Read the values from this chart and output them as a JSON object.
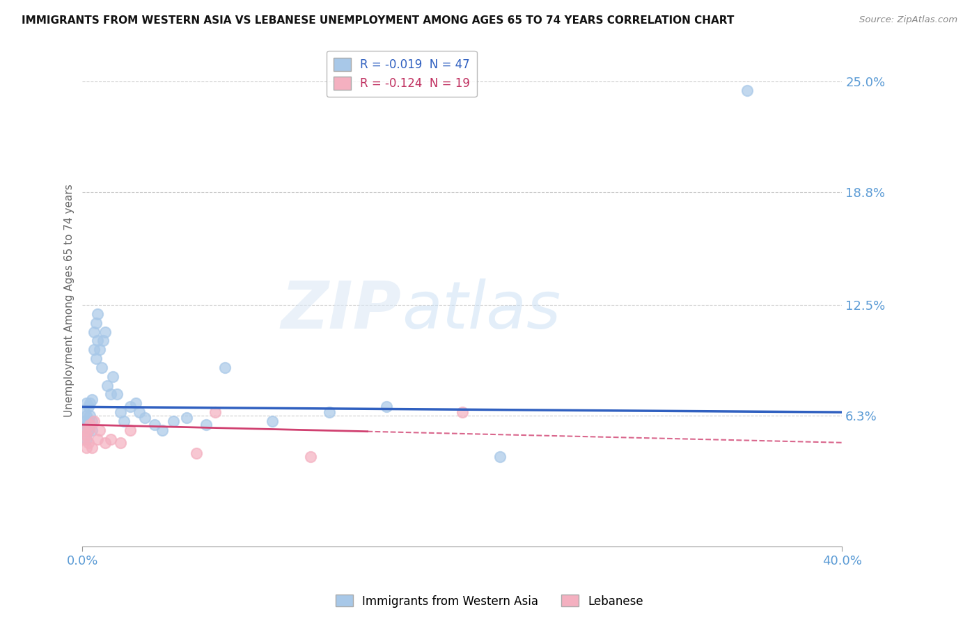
{
  "title": "IMMIGRANTS FROM WESTERN ASIA VS LEBANESE UNEMPLOYMENT AMONG AGES 65 TO 74 YEARS CORRELATION CHART",
  "source": "Source: ZipAtlas.com",
  "ylabel": "Unemployment Among Ages 65 to 74 years",
  "xlim": [
    0.0,
    0.4
  ],
  "ylim": [
    -0.01,
    0.265
  ],
  "yticks": [
    0.063,
    0.125,
    0.188,
    0.25
  ],
  "ytick_labels": [
    "6.3%",
    "12.5%",
    "18.8%",
    "25.0%"
  ],
  "xticks": [
    0.0,
    0.4
  ],
  "xtick_labels": [
    "0.0%",
    "40.0%"
  ],
  "blue_color": "#a8c8e8",
  "pink_color": "#f4b0c0",
  "blue_line_color": "#3060c0",
  "pink_line_color": "#d04070",
  "blue_label": "Immigrants from Western Asia",
  "pink_label": "Lebanese",
  "blue_R": -0.019,
  "blue_N": 47,
  "pink_R": -0.124,
  "pink_N": 19,
  "watermark_zip": "ZIP",
  "watermark_atlas": "atlas",
  "blue_scatter_x": [
    0.001,
    0.001,
    0.001,
    0.002,
    0.002,
    0.002,
    0.002,
    0.003,
    0.003,
    0.003,
    0.004,
    0.004,
    0.004,
    0.005,
    0.005,
    0.005,
    0.006,
    0.006,
    0.007,
    0.007,
    0.008,
    0.008,
    0.009,
    0.01,
    0.011,
    0.012,
    0.013,
    0.015,
    0.016,
    0.018,
    0.02,
    0.022,
    0.025,
    0.028,
    0.03,
    0.033,
    0.038,
    0.042,
    0.048,
    0.055,
    0.065,
    0.075,
    0.1,
    0.13,
    0.16,
    0.22,
    0.35
  ],
  "blue_scatter_y": [
    0.055,
    0.06,
    0.065,
    0.05,
    0.058,
    0.063,
    0.07,
    0.055,
    0.06,
    0.068,
    0.058,
    0.063,
    0.07,
    0.055,
    0.06,
    0.072,
    0.1,
    0.11,
    0.095,
    0.115,
    0.105,
    0.12,
    0.1,
    0.09,
    0.105,
    0.11,
    0.08,
    0.075,
    0.085,
    0.075,
    0.065,
    0.06,
    0.068,
    0.07,
    0.065,
    0.062,
    0.058,
    0.055,
    0.06,
    0.062,
    0.058,
    0.09,
    0.06,
    0.065,
    0.068,
    0.04,
    0.245
  ],
  "pink_scatter_x": [
    0.001,
    0.001,
    0.002,
    0.002,
    0.003,
    0.003,
    0.004,
    0.005,
    0.006,
    0.008,
    0.009,
    0.012,
    0.015,
    0.02,
    0.025,
    0.06,
    0.07,
    0.12,
    0.2
  ],
  "pink_scatter_y": [
    0.05,
    0.055,
    0.045,
    0.052,
    0.048,
    0.055,
    0.058,
    0.045,
    0.06,
    0.05,
    0.055,
    0.048,
    0.05,
    0.048,
    0.055,
    0.042,
    0.065,
    0.04,
    0.065
  ],
  "blue_trend_x": [
    0.0,
    0.4
  ],
  "blue_trend_y": [
    0.068,
    0.065
  ],
  "pink_trend_x": [
    0.0,
    0.4
  ],
  "pink_trend_y": [
    0.058,
    0.048
  ]
}
